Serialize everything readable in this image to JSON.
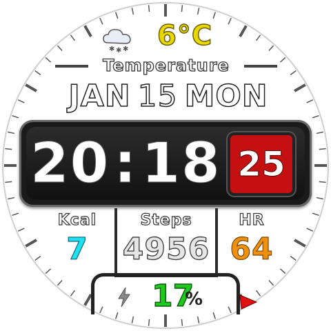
{
  "weather": {
    "icon": "snow-cloud-icon"
  },
  "temperature": {
    "value": "6°C",
    "label": "Temperature"
  },
  "date": {
    "month": "JAN",
    "day": "15",
    "weekday": "MON"
  },
  "time": {
    "hours": "20",
    "minutes": "18",
    "seconds": "25"
  },
  "stats": {
    "kcal": {
      "label": "Kcal",
      "value": "7"
    },
    "steps": {
      "label": "Steps",
      "value": "4956"
    },
    "hr": {
      "label": "HR",
      "value": "64"
    }
  },
  "battery": {
    "icon": "lightning-bolt-icon",
    "value": "17",
    "unit": "%"
  },
  "indicator": {
    "icon": "red-triangle-arrow-icon"
  },
  "colors": {
    "temperature": "#e8d800",
    "kcal": "#1ee0f0",
    "hr": "#f09010",
    "battery": "#1fc81f",
    "seconds_bg": "#c41010"
  }
}
